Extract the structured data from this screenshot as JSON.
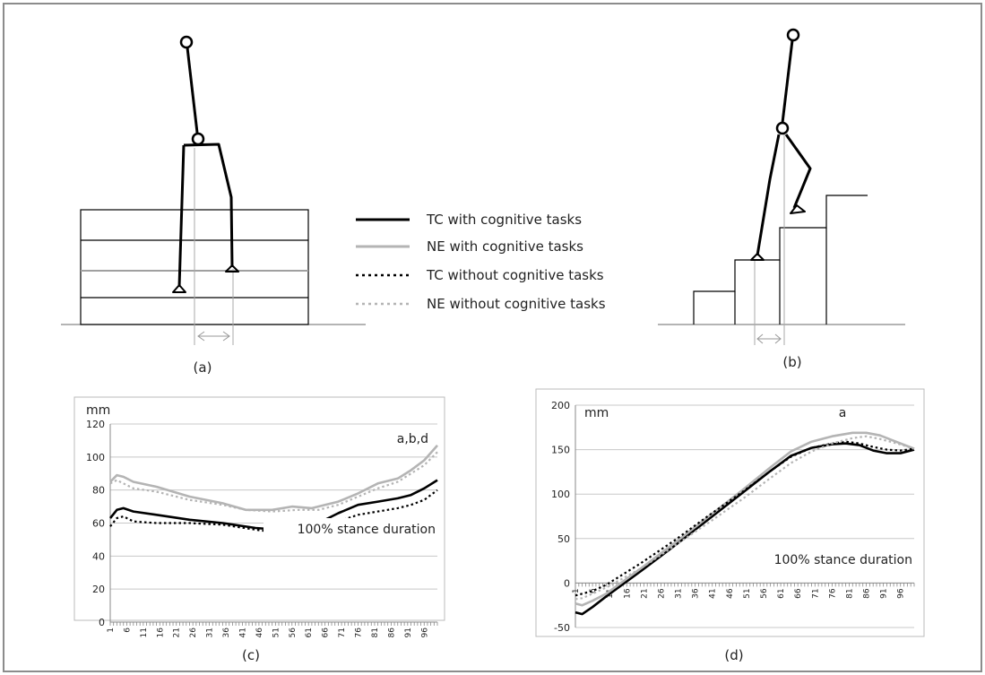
{
  "legend": {
    "items": [
      {
        "label": "TC with cognitive tasks",
        "color": "#000000",
        "style": "solid"
      },
      {
        "label": "NE with cognitive tasks",
        "color": "#b4b4b4",
        "style": "solid"
      },
      {
        "label": "TC without cognitive tasks",
        "color": "#000000",
        "style": "dotted"
      },
      {
        "label": "NE without cognitive tasks",
        "color": "#b4b4b4",
        "style": "dotted"
      }
    ]
  },
  "panels": {
    "a": {
      "label": "(a)"
    },
    "b": {
      "label": "(b)"
    },
    "c": {
      "label": "(c)"
    },
    "d": {
      "label": "(d)"
    }
  },
  "chart_data": [
    {
      "id": "c",
      "type": "line",
      "unit_label": "mm",
      "annotation": "a,b,d",
      "inner_label": "100% stance duration",
      "xlabel": "",
      "ylabel": "",
      "ylim": [
        0,
        120
      ],
      "yticks": [
        0,
        20,
        40,
        60,
        80,
        100,
        120
      ],
      "x_range": [
        1,
        100
      ],
      "xticks": [
        1,
        6,
        11,
        16,
        21,
        26,
        31,
        36,
        41,
        46,
        51,
        56,
        61,
        66,
        71,
        76,
        81,
        86,
        91,
        96
      ],
      "grid": true,
      "series": [
        {
          "name": "TC with cognitive tasks",
          "color": "#000000",
          "style": "solid",
          "points": [
            [
              1,
              63
            ],
            [
              3,
              68
            ],
            [
              5,
              69
            ],
            [
              8,
              67
            ],
            [
              15,
              65
            ],
            [
              25,
              62
            ],
            [
              35,
              60
            ],
            [
              45,
              57
            ],
            [
              52,
              56
            ],
            [
              58,
              57
            ],
            [
              64,
              60
            ],
            [
              70,
              66
            ],
            [
              76,
              71
            ],
            [
              82,
              73
            ],
            [
              88,
              75
            ],
            [
              92,
              77
            ],
            [
              96,
              81
            ],
            [
              100,
              86
            ]
          ]
        },
        {
          "name": "NE with cognitive tasks",
          "color": "#b4b4b4",
          "style": "solid",
          "points": [
            [
              1,
              85
            ],
            [
              3,
              89
            ],
            [
              5,
              88
            ],
            [
              8,
              85
            ],
            [
              15,
              82
            ],
            [
              25,
              76
            ],
            [
              35,
              72
            ],
            [
              42,
              68
            ],
            [
              50,
              68
            ],
            [
              56,
              70
            ],
            [
              62,
              69
            ],
            [
              70,
              73
            ],
            [
              76,
              78
            ],
            [
              82,
              84
            ],
            [
              88,
              87
            ],
            [
              92,
              92
            ],
            [
              96,
              98
            ],
            [
              100,
              107
            ]
          ]
        },
        {
          "name": "TC without cognitive tasks",
          "color": "#000000",
          "style": "dotted",
          "points": [
            [
              1,
              58
            ],
            [
              3,
              63
            ],
            [
              5,
              64
            ],
            [
              8,
              61
            ],
            [
              15,
              60
            ],
            [
              25,
              60
            ],
            [
              35,
              59
            ],
            [
              45,
              56
            ],
            [
              52,
              54
            ],
            [
              58,
              54
            ],
            [
              64,
              57
            ],
            [
              70,
              61
            ],
            [
              76,
              65
            ],
            [
              82,
              67
            ],
            [
              88,
              69
            ],
            [
              92,
              71
            ],
            [
              96,
              74
            ],
            [
              100,
              80
            ]
          ]
        },
        {
          "name": "NE without cognitive tasks",
          "color": "#b4b4b4",
          "style": "dotted",
          "points": [
            [
              1,
              84
            ],
            [
              3,
              86
            ],
            [
              5,
              84
            ],
            [
              8,
              81
            ],
            [
              15,
              79
            ],
            [
              25,
              74
            ],
            [
              35,
              71
            ],
            [
              42,
              68
            ],
            [
              50,
              67
            ],
            [
              58,
              68
            ],
            [
              64,
              68
            ],
            [
              70,
              71
            ],
            [
              76,
              76
            ],
            [
              82,
              81
            ],
            [
              88,
              85
            ],
            [
              92,
              90
            ],
            [
              96,
              95
            ],
            [
              100,
              103
            ]
          ]
        }
      ]
    },
    {
      "id": "d",
      "type": "line",
      "unit_label": "mm",
      "annotation": "a",
      "inner_label": "100% stance duration",
      "xlabel": "",
      "ylabel": "",
      "ylim": [
        -50,
        200
      ],
      "yticks": [
        -50,
        0,
        50,
        100,
        150,
        200
      ],
      "x_range": [
        1,
        100
      ],
      "xticks": [
        1,
        6,
        11,
        16,
        21,
        26,
        31,
        36,
        41,
        46,
        51,
        56,
        61,
        66,
        71,
        76,
        81,
        86,
        91,
        96
      ],
      "grid": true,
      "series": [
        {
          "name": "TC with cognitive tasks",
          "color": "#000000",
          "style": "solid",
          "points": [
            [
              1,
              -33
            ],
            [
              3,
              -35
            ],
            [
              6,
              -27
            ],
            [
              10,
              -15
            ],
            [
              20,
              13
            ],
            [
              30,
              42
            ],
            [
              40,
              72
            ],
            [
              50,
              102
            ],
            [
              58,
              126
            ],
            [
              64,
              143
            ],
            [
              70,
              152
            ],
            [
              76,
              156
            ],
            [
              80,
              157
            ],
            [
              84,
              155
            ],
            [
              88,
              149
            ],
            [
              92,
              146
            ],
            [
              96,
              146
            ],
            [
              100,
              150
            ]
          ]
        },
        {
          "name": "NE with cognitive tasks",
          "color": "#b4b4b4",
          "style": "solid",
          "points": [
            [
              1,
              -23
            ],
            [
              3,
              -25
            ],
            [
              6,
              -20
            ],
            [
              10,
              -12
            ],
            [
              20,
              16
            ],
            [
              30,
              45
            ],
            [
              40,
              75
            ],
            [
              50,
              105
            ],
            [
              58,
              130
            ],
            [
              64,
              148
            ],
            [
              70,
              159
            ],
            [
              76,
              165
            ],
            [
              82,
              169
            ],
            [
              86,
              169
            ],
            [
              90,
              166
            ],
            [
              94,
              160
            ],
            [
              100,
              151
            ]
          ]
        },
        {
          "name": "TC without cognitive tasks",
          "color": "#000000",
          "style": "dotted",
          "points": [
            [
              1,
              -14
            ],
            [
              3,
              -12
            ],
            [
              6,
              -9
            ],
            [
              10,
              -2
            ],
            [
              20,
              22
            ],
            [
              30,
              48
            ],
            [
              40,
              76
            ],
            [
              50,
              103
            ],
            [
              58,
              126
            ],
            [
              64,
              142
            ],
            [
              70,
              152
            ],
            [
              76,
              157
            ],
            [
              80,
              159
            ],
            [
              84,
              157
            ],
            [
              88,
              153
            ],
            [
              92,
              150
            ],
            [
              96,
              149
            ],
            [
              100,
              151
            ]
          ]
        },
        {
          "name": "NE without cognitive tasks",
          "color": "#b4b4b4",
          "style": "dotted",
          "points": [
            [
              1,
              -18
            ],
            [
              3,
              -17
            ],
            [
              6,
              -12
            ],
            [
              10,
              -5
            ],
            [
              20,
              16
            ],
            [
              30,
              42
            ],
            [
              40,
              68
            ],
            [
              50,
              95
            ],
            [
              58,
              118
            ],
            [
              64,
              135
            ],
            [
              70,
              148
            ],
            [
              76,
              157
            ],
            [
              82,
              163
            ],
            [
              86,
              165
            ],
            [
              90,
              162
            ],
            [
              95,
              157
            ],
            [
              100,
              151
            ]
          ]
        }
      ]
    }
  ]
}
